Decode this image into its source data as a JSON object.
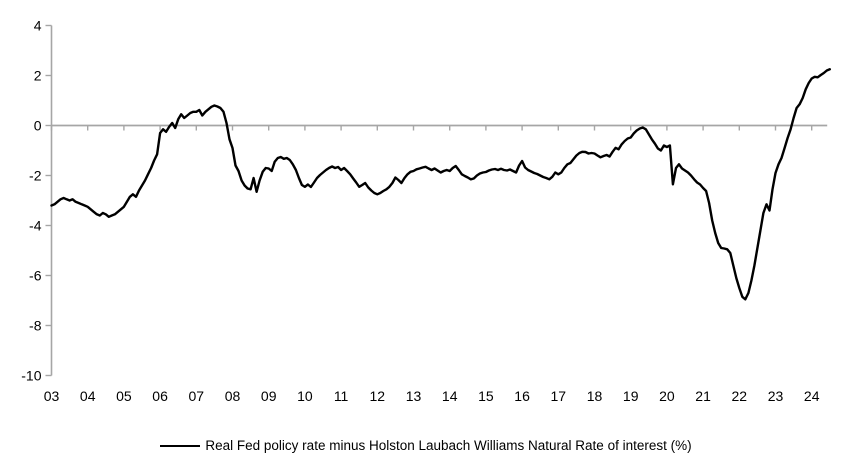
{
  "chart_data": {
    "type": "line",
    "title": "",
    "legend": "Real Fed policy rate minus Holston Laubach Williams Natural Rate of interest (%)",
    "legend_position": "bottom-center",
    "x_start_year": 2003,
    "points_per_year": 12,
    "x_tick_labels": [
      "03",
      "04",
      "05",
      "06",
      "07",
      "08",
      "09",
      "10",
      "11",
      "12",
      "13",
      "14",
      "15",
      "16",
      "17",
      "18",
      "19",
      "20",
      "21",
      "22",
      "23",
      "24"
    ],
    "y_ticks": [
      4,
      2,
      0,
      -2,
      -4,
      -6,
      -8,
      -10
    ],
    "ylim": [
      -10,
      4
    ],
    "grid": false,
    "zero_line": true,
    "line_color": "#000000",
    "axis_color": "#A6A6A6",
    "values": [
      -3.2,
      -3.15,
      -3.05,
      -2.95,
      -2.9,
      -2.95,
      -3.0,
      -2.95,
      -3.05,
      -3.1,
      -3.15,
      -3.2,
      -3.25,
      -3.35,
      -3.45,
      -3.55,
      -3.6,
      -3.5,
      -3.55,
      -3.65,
      -3.6,
      -3.55,
      -3.45,
      -3.35,
      -3.25,
      -3.05,
      -2.85,
      -2.75,
      -2.85,
      -2.6,
      -2.4,
      -2.2,
      -1.95,
      -1.7,
      -1.4,
      -1.15,
      -0.3,
      -0.15,
      -0.25,
      -0.05,
      0.1,
      -0.1,
      0.25,
      0.45,
      0.3,
      0.4,
      0.5,
      0.55,
      0.55,
      0.62,
      0.4,
      0.55,
      0.65,
      0.75,
      0.8,
      0.76,
      0.7,
      0.55,
      0.1,
      -0.55,
      -0.9,
      -1.6,
      -1.82,
      -2.2,
      -2.4,
      -2.52,
      -2.55,
      -2.1,
      -2.65,
      -2.2,
      -1.85,
      -1.7,
      -1.72,
      -1.82,
      -1.45,
      -1.3,
      -1.26,
      -1.33,
      -1.3,
      -1.38,
      -1.55,
      -1.78,
      -2.1,
      -2.38,
      -2.45,
      -2.36,
      -2.46,
      -2.28,
      -2.1,
      -1.98,
      -1.88,
      -1.78,
      -1.7,
      -1.64,
      -1.7,
      -1.66,
      -1.78,
      -1.7,
      -1.82,
      -1.95,
      -2.12,
      -2.28,
      -2.45,
      -2.38,
      -2.3,
      -2.48,
      -2.6,
      -2.7,
      -2.75,
      -2.7,
      -2.62,
      -2.55,
      -2.45,
      -2.3,
      -2.08,
      -2.18,
      -2.3,
      -2.1,
      -1.95,
      -1.85,
      -1.82,
      -1.75,
      -1.72,
      -1.68,
      -1.65,
      -1.72,
      -1.78,
      -1.72,
      -1.8,
      -1.88,
      -1.82,
      -1.78,
      -1.82,
      -1.7,
      -1.62,
      -1.78,
      -1.95,
      -2.02,
      -2.08,
      -2.15,
      -2.12,
      -2.0,
      -1.92,
      -1.88,
      -1.86,
      -1.8,
      -1.76,
      -1.74,
      -1.78,
      -1.73,
      -1.78,
      -1.8,
      -1.76,
      -1.82,
      -1.88,
      -1.6,
      -1.42,
      -1.68,
      -1.78,
      -1.84,
      -1.9,
      -1.94,
      -2.0,
      -2.06,
      -2.1,
      -2.15,
      -2.05,
      -1.88,
      -1.95,
      -1.88,
      -1.7,
      -1.55,
      -1.5,
      -1.35,
      -1.2,
      -1.1,
      -1.05,
      -1.06,
      -1.12,
      -1.1,
      -1.12,
      -1.2,
      -1.27,
      -1.22,
      -1.18,
      -1.24,
      -1.05,
      -0.89,
      -0.95,
      -0.75,
      -0.62,
      -0.52,
      -0.48,
      -0.32,
      -0.2,
      -0.12,
      -0.08,
      -0.15,
      -0.35,
      -0.55,
      -0.72,
      -0.92,
      -1.0,
      -0.8,
      -0.86,
      -0.8,
      -2.35,
      -1.7,
      -1.55,
      -1.72,
      -1.8,
      -1.88,
      -2.0,
      -2.15,
      -2.28,
      -2.36,
      -2.5,
      -2.62,
      -3.1,
      -3.8,
      -4.3,
      -4.7,
      -4.9,
      -4.92,
      -4.95,
      -5.1,
      -5.6,
      -6.1,
      -6.5,
      -6.85,
      -6.95,
      -6.7,
      -6.2,
      -5.6,
      -4.9,
      -4.2,
      -3.5,
      -3.15,
      -3.4,
      -2.55,
      -1.9,
      -1.55,
      -1.3,
      -0.9,
      -0.5,
      -0.15,
      0.3,
      0.7,
      0.85,
      1.1,
      1.45,
      1.7,
      1.88,
      1.95,
      1.93,
      2.02,
      2.1,
      2.2,
      2.25
    ]
  }
}
